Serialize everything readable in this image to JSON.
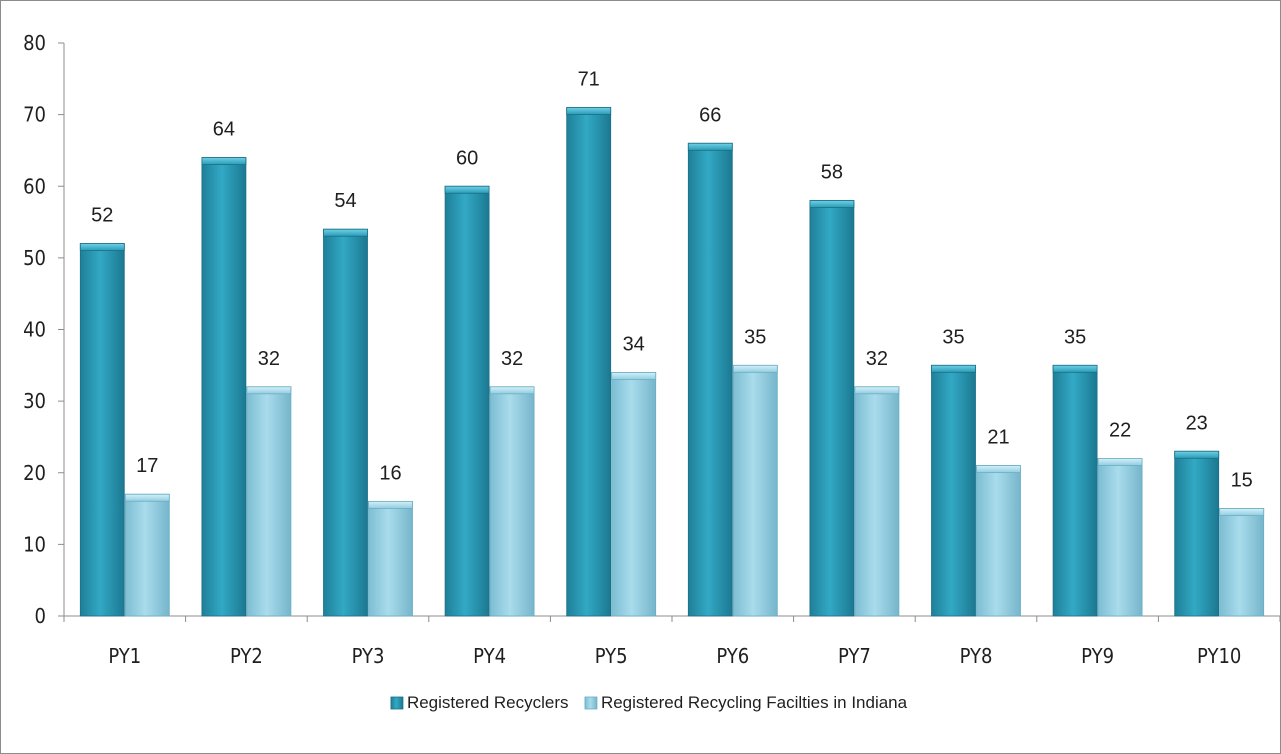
{
  "chart_data": {
    "type": "bar",
    "categories": [
      "PY1",
      "PY2",
      "PY3",
      "PY4",
      "PY5",
      "PY6",
      "PY7",
      "PY8",
      "PY9",
      "PY10"
    ],
    "series": [
      {
        "name": "Registered Recyclers",
        "values": [
          52,
          64,
          54,
          60,
          71,
          66,
          58,
          35,
          35,
          23
        ],
        "color": "#2a9bb5"
      },
      {
        "name": "Registered Recycling Facilties in Indiana",
        "values": [
          17,
          32,
          16,
          32,
          34,
          35,
          32,
          21,
          22,
          15
        ],
        "color": "#92cde0"
      }
    ],
    "ylim": [
      0,
      80
    ],
    "yticks": [
      0,
      10,
      20,
      30,
      40,
      50,
      60,
      70,
      80
    ],
    "title": "",
    "xlabel": "",
    "ylabel": "",
    "grid": false,
    "legend_position": "bottom",
    "data_labels": true
  }
}
